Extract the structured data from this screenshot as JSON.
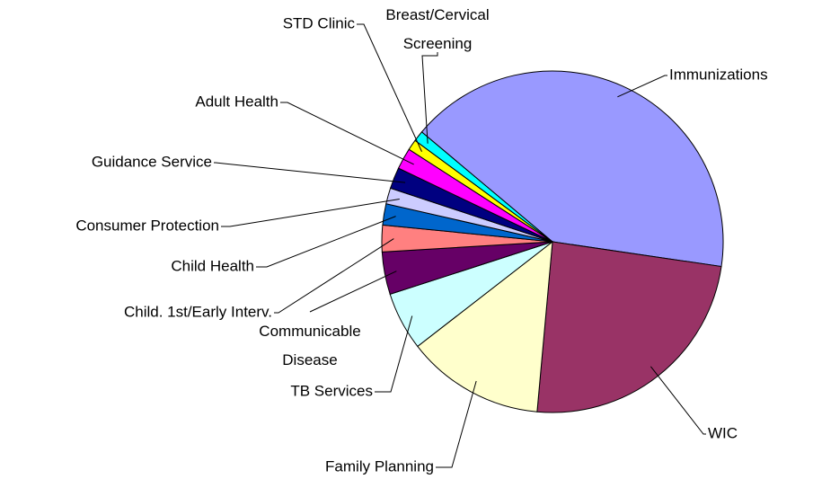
{
  "chart_data": {
    "type": "pie",
    "categories": [
      "Immunizations",
      "WIC",
      "Family Planning",
      "TB Services",
      "Communicable Disease",
      "Child. 1st/Early Interv.",
      "Child Health",
      "Consumer Protection",
      "Guidance Service",
      "Adult Health",
      "STD Clinic",
      "Breast/Cervical Screening"
    ],
    "values": [
      41,
      24,
      13,
      5.5,
      4,
      2.5,
      2,
      1.5,
      2,
      2,
      1,
      1
    ],
    "colors": [
      "#9999ff",
      "#993366",
      "#ffffcc",
      "#ccffff",
      "#660066",
      "#ff8080",
      "#0066cc",
      "#ccccff",
      "#000080",
      "#ff00ff",
      "#ffff00",
      "#00ffff"
    ]
  }
}
